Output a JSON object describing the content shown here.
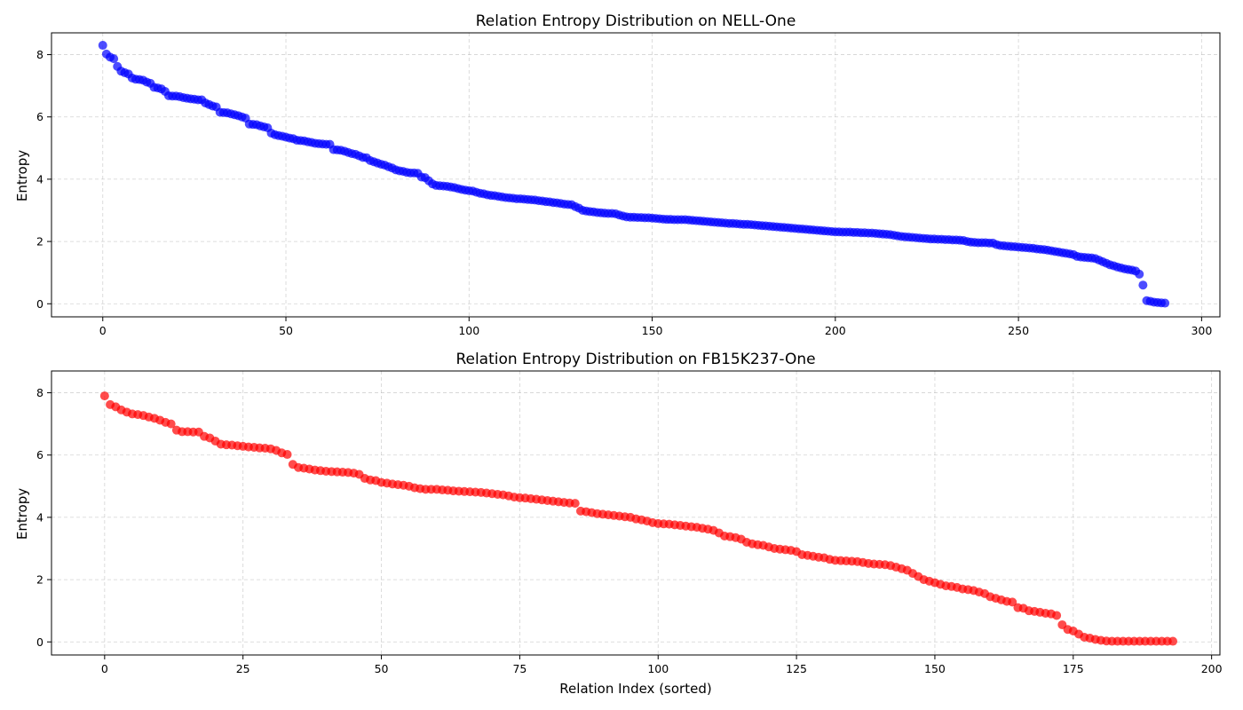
{
  "chart_data": [
    {
      "type": "scatter",
      "title": "Relation Entropy Distribution on NELL-One",
      "xlabel": "",
      "ylabel": "Entropy",
      "color": "#0000ff",
      "xlim": [
        -14,
        305
      ],
      "ylim": [
        -0.42,
        8.7
      ],
      "xticks": [
        0,
        50,
        100,
        150,
        200,
        250,
        300
      ],
      "yticks": [
        0,
        2,
        4,
        6,
        8
      ],
      "grid": true,
      "x_start": 0,
      "values": [
        8.3,
        8.02,
        7.92,
        7.87,
        7.62,
        7.47,
        7.42,
        7.38,
        7.25,
        7.21,
        7.2,
        7.18,
        7.12,
        7.08,
        6.95,
        6.93,
        6.9,
        6.82,
        6.68,
        6.67,
        6.67,
        6.65,
        6.62,
        6.6,
        6.58,
        6.57,
        6.55,
        6.55,
        6.45,
        6.4,
        6.35,
        6.32,
        6.15,
        6.14,
        6.13,
        6.1,
        6.07,
        6.04,
        6.0,
        5.96,
        5.77,
        5.76,
        5.75,
        5.71,
        5.68,
        5.65,
        5.48,
        5.43,
        5.4,
        5.38,
        5.35,
        5.32,
        5.3,
        5.25,
        5.24,
        5.23,
        5.2,
        5.18,
        5.15,
        5.14,
        5.13,
        5.12,
        5.12,
        4.95,
        4.94,
        4.93,
        4.9,
        4.86,
        4.82,
        4.8,
        4.75,
        4.7,
        4.69,
        4.6,
        4.56,
        4.52,
        4.48,
        4.45,
        4.4,
        4.36,
        4.3,
        4.27,
        4.25,
        4.22,
        4.2,
        4.2,
        4.19,
        4.07,
        4.05,
        3.95,
        3.85,
        3.8,
        3.79,
        3.78,
        3.77,
        3.75,
        3.73,
        3.7,
        3.67,
        3.65,
        3.63,
        3.62,
        3.58,
        3.55,
        3.53,
        3.5,
        3.48,
        3.47,
        3.45,
        3.43,
        3.41,
        3.4,
        3.39,
        3.37,
        3.37,
        3.36,
        3.35,
        3.34,
        3.33,
        3.31,
        3.3,
        3.28,
        3.27,
        3.25,
        3.24,
        3.22,
        3.2,
        3.19,
        3.18,
        3.12,
        3.07,
        3.0,
        2.98,
        2.96,
        2.95,
        2.93,
        2.92,
        2.91,
        2.9,
        2.9,
        2.89,
        2.85,
        2.82,
        2.79,
        2.78,
        2.78,
        2.77,
        2.77,
        2.76,
        2.76,
        2.75,
        2.74,
        2.73,
        2.72,
        2.71,
        2.71,
        2.7,
        2.7,
        2.7,
        2.7,
        2.69,
        2.68,
        2.67,
        2.66,
        2.65,
        2.64,
        2.63,
        2.62,
        2.61,
        2.6,
        2.59,
        2.58,
        2.58,
        2.57,
        2.56,
        2.55,
        2.55,
        2.54,
        2.53,
        2.52,
        2.51,
        2.5,
        2.49,
        2.48,
        2.47,
        2.46,
        2.45,
        2.44,
        2.43,
        2.42,
        2.41,
        2.4,
        2.39,
        2.38,
        2.37,
        2.36,
        2.35,
        2.34,
        2.33,
        2.32,
        2.31,
        2.31,
        2.3,
        2.3,
        2.3,
        2.29,
        2.29,
        2.28,
        2.28,
        2.27,
        2.27,
        2.26,
        2.25,
        2.24,
        2.23,
        2.22,
        2.2,
        2.18,
        2.16,
        2.15,
        2.14,
        2.13,
        2.12,
        2.11,
        2.1,
        2.09,
        2.08,
        2.08,
        2.07,
        2.07,
        2.06,
        2.06,
        2.05,
        2.05,
        2.04,
        2.03,
        2.0,
        1.98,
        1.97,
        1.96,
        1.96,
        1.96,
        1.95,
        1.95,
        1.9,
        1.87,
        1.86,
        1.85,
        1.84,
        1.83,
        1.82,
        1.81,
        1.8,
        1.79,
        1.78,
        1.76,
        1.75,
        1.74,
        1.72,
        1.7,
        1.68,
        1.66,
        1.64,
        1.62,
        1.6,
        1.58,
        1.52,
        1.5,
        1.49,
        1.48,
        1.47,
        1.45,
        1.4,
        1.35,
        1.3,
        1.25,
        1.22,
        1.18,
        1.15,
        1.12,
        1.1,
        1.08,
        1.05,
        0.95,
        0.6,
        0.1,
        0.08,
        0.05,
        0.04,
        0.03,
        0.02
      ]
    },
    {
      "type": "scatter",
      "title": "Relation Entropy Distribution on FB15K237-One",
      "xlabel": "Relation Index (sorted)",
      "ylabel": "Entropy",
      "color": "#ff0000",
      "xlim": [
        -9.6,
        201.5
      ],
      "ylim": [
        -0.42,
        8.7
      ],
      "xticks": [
        0,
        25,
        50,
        75,
        100,
        125,
        150,
        175,
        200
      ],
      "yticks": [
        0,
        2,
        4,
        6,
        8
      ],
      "grid": true,
      "x_start": 0,
      "values": [
        7.9,
        7.62,
        7.55,
        7.45,
        7.38,
        7.32,
        7.3,
        7.27,
        7.22,
        7.18,
        7.12,
        7.05,
        7.0,
        6.8,
        6.75,
        6.75,
        6.74,
        6.74,
        6.6,
        6.55,
        6.45,
        6.35,
        6.33,
        6.32,
        6.3,
        6.28,
        6.26,
        6.25,
        6.23,
        6.22,
        6.2,
        6.15,
        6.07,
        6.02,
        5.7,
        5.6,
        5.58,
        5.55,
        5.52,
        5.5,
        5.48,
        5.47,
        5.46,
        5.45,
        5.44,
        5.42,
        5.38,
        5.25,
        5.2,
        5.18,
        5.12,
        5.1,
        5.07,
        5.05,
        5.03,
        5.0,
        4.95,
        4.92,
        4.9,
        4.9,
        4.9,
        4.88,
        4.87,
        4.85,
        4.84,
        4.83,
        4.82,
        4.81,
        4.8,
        4.78,
        4.76,
        4.74,
        4.72,
        4.69,
        4.65,
        4.63,
        4.62,
        4.6,
        4.58,
        4.56,
        4.54,
        4.52,
        4.5,
        4.48,
        4.46,
        4.45,
        4.2,
        4.18,
        4.15,
        4.12,
        4.1,
        4.08,
        4.06,
        4.04,
        4.02,
        4.0,
        3.95,
        3.92,
        3.88,
        3.83,
        3.8,
        3.79,
        3.78,
        3.76,
        3.74,
        3.72,
        3.7,
        3.68,
        3.65,
        3.62,
        3.58,
        3.5,
        3.4,
        3.38,
        3.35,
        3.3,
        3.2,
        3.15,
        3.12,
        3.1,
        3.05,
        3.0,
        2.98,
        2.96,
        2.94,
        2.9,
        2.8,
        2.78,
        2.75,
        2.72,
        2.7,
        2.65,
        2.62,
        2.61,
        2.6,
        2.59,
        2.58,
        2.55,
        2.52,
        2.5,
        2.49,
        2.48,
        2.45,
        2.4,
        2.35,
        2.3,
        2.2,
        2.1,
        2.0,
        1.95,
        1.9,
        1.85,
        1.8,
        1.78,
        1.75,
        1.7,
        1.68,
        1.65,
        1.6,
        1.55,
        1.45,
        1.4,
        1.35,
        1.3,
        1.28,
        1.1,
        1.08,
        1.0,
        0.98,
        0.95,
        0.92,
        0.9,
        0.85,
        0.55,
        0.4,
        0.35,
        0.25,
        0.15,
        0.12,
        0.08,
        0.05,
        0.03,
        0.02,
        0.02,
        0.02,
        0.02,
        0.02,
        0.02,
        0.02,
        0.02,
        0.02,
        0.02,
        0.02,
        0.02
      ]
    }
  ]
}
